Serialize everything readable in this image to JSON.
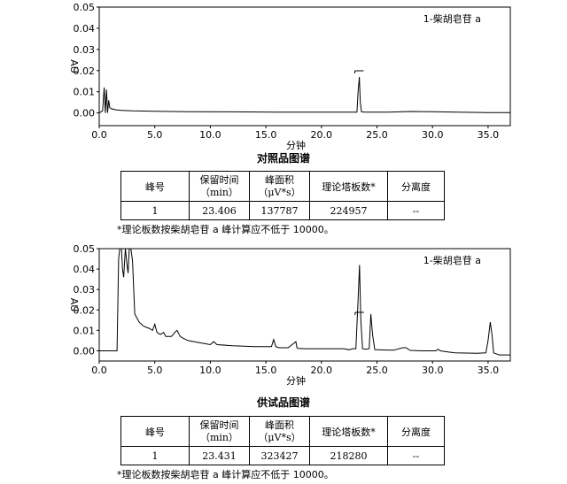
{
  "chart_data": [
    {
      "type": "line",
      "annotation": "1-柴胡皂苷 a",
      "xlabel": "分钟",
      "ylabel": "AU",
      "xlim": [
        0,
        37
      ],
      "ylim": [
        -0.006,
        0.05
      ],
      "xticks": [
        "0.0",
        "5.0",
        "10.0",
        "15.0",
        "20.0",
        "25.0",
        "30.0",
        "35.0"
      ],
      "yticks": [
        "0.00",
        "0.01",
        "0.02",
        "0.03",
        "0.04",
        "0.05"
      ],
      "peak_marker_x": 23.406,
      "series": [
        {
          "x": [
            0.0,
            0.3,
            0.45,
            0.55,
            0.65,
            0.75,
            0.85,
            0.95,
            1.1,
            1.5,
            2.0,
            3.0,
            5.0,
            8.0,
            12.0,
            16.0,
            20.0,
            22.0,
            23.2,
            23.3,
            23.41,
            23.5,
            23.6,
            24.0,
            26.0,
            28.0,
            30.0,
            33.0,
            35.0,
            37.0
          ],
          "y": [
            0.0,
            0.001,
            0.012,
            0.0,
            0.011,
            0.0,
            0.006,
            0.0025,
            0.002,
            0.0015,
            0.0012,
            0.001,
            0.0008,
            0.0006,
            0.0005,
            0.0004,
            0.0004,
            0.0004,
            0.0004,
            0.01,
            0.017,
            0.005,
            0.0005,
            0.0004,
            0.0004,
            0.0007,
            0.0006,
            0.0003,
            0.0002,
            0.0002
          ]
        }
      ]
    },
    {
      "type": "line",
      "annotation": "1-柴胡皂苷 a",
      "xlabel": "分钟",
      "ylabel": "AU",
      "xlim": [
        0,
        37
      ],
      "ylim": [
        -0.005,
        0.05
      ],
      "xticks": [
        "0.0",
        "5.0",
        "10.0",
        "15.0",
        "20.0",
        "25.0",
        "30.0",
        "35.0"
      ],
      "yticks": [
        "0.00",
        "0.01",
        "0.02",
        "0.03",
        "0.04",
        "0.05"
      ],
      "peak_marker_x": 23.431,
      "series": [
        {
          "x": [
            0.0,
            0.4,
            0.6,
            0.9,
            1.1,
            1.4,
            1.6,
            1.75,
            1.85,
            2.0,
            2.1,
            2.2,
            2.35,
            2.5,
            2.6,
            2.7,
            2.85,
            3.0,
            3.2,
            3.4,
            3.6,
            4.0,
            4.5,
            4.8,
            5.0,
            5.2,
            5.5,
            5.8,
            6.0,
            6.5,
            6.8,
            7.0,
            7.3,
            7.6,
            8.0,
            9.0,
            10.0,
            10.3,
            10.6,
            12.0,
            14.0,
            15.5,
            15.7,
            15.9,
            16.2,
            17.0,
            17.7,
            17.8,
            17.9,
            18.5,
            20.0,
            22.0,
            22.5,
            22.8,
            23.1,
            23.3,
            23.43,
            23.55,
            23.7,
            24.0,
            24.3,
            24.45,
            24.6,
            24.8,
            25.5,
            26.5,
            27.3,
            27.6,
            28.0,
            29.0,
            30.3,
            30.5,
            30.7,
            32.0,
            34.0,
            34.8,
            35.0,
            35.2,
            35.35,
            35.5,
            36.0,
            37.0
          ],
          "y": [
            0.0,
            0.0,
            0.0,
            0.0,
            0.0,
            0.0,
            0.0,
            0.045,
            0.05,
            0.05,
            0.04,
            0.036,
            0.05,
            0.042,
            0.038,
            0.05,
            0.05,
            0.044,
            0.018,
            0.016,
            0.014,
            0.012,
            0.011,
            0.01,
            0.013,
            0.009,
            0.008,
            0.009,
            0.007,
            0.007,
            0.009,
            0.01,
            0.007,
            0.006,
            0.005,
            0.004,
            0.003,
            0.0045,
            0.003,
            0.0025,
            0.002,
            0.002,
            0.0055,
            0.002,
            0.0015,
            0.0015,
            0.0045,
            0.0015,
            0.0012,
            0.001,
            0.001,
            0.001,
            0.0005,
            0.001,
            0.001,
            0.025,
            0.042,
            0.015,
            0.001,
            0.0008,
            0.001,
            0.018,
            0.008,
            0.0006,
            0.0004,
            0.0003,
            0.0015,
            0.0015,
            0.0002,
            0.0,
            0.0,
            0.0008,
            0.0,
            -0.001,
            -0.0012,
            -0.001,
            0.005,
            0.014,
            0.008,
            -0.001,
            -0.002,
            -0.002
          ]
        }
      ]
    }
  ],
  "chromatograms": [
    {
      "section_title": "对照品图谱",
      "table": {
        "headers": [
          "峰号",
          "保留时间\n（min）",
          "峰面积\n（μV*s）",
          "理论塔板数*",
          "分离度"
        ],
        "row": [
          "1",
          "23.406",
          "137787",
          "224957",
          "--"
        ]
      },
      "footnote": "*理论板数按柴胡皂苷 a 峰计算应不低于 10000。"
    },
    {
      "section_title": "供试品图谱",
      "table": {
        "headers": [
          "峰号",
          "保留时间\n（min）",
          "峰面积\n（μV*s）",
          "理论塔板数*",
          "分离度"
        ],
        "row": [
          "1",
          "23.431",
          "323427",
          "218280",
          "--"
        ]
      },
      "footnote": "*理论板数按柴胡皂苷 a 峰计算应不低于 10000。"
    }
  ]
}
